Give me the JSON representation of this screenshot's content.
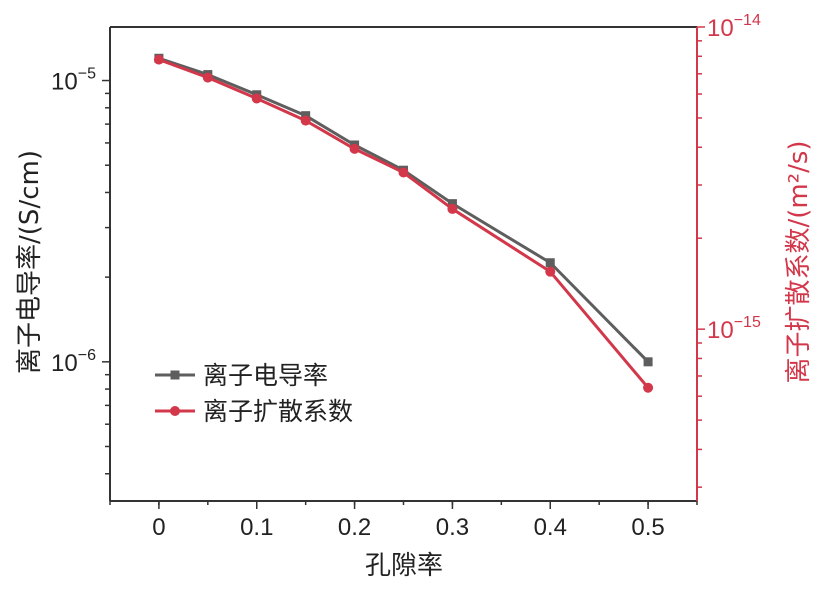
{
  "chart_data": {
    "type": "line",
    "xlabel": "孔隙率",
    "ylabel_left": "离子电导率/(S/cm)",
    "ylabel_right": "离子扩散系数/(m²/s)",
    "xlim": [
      -0.05,
      0.55
    ],
    "x_ticks": [
      0,
      0.1,
      0.2,
      0.3,
      0.4,
      0.5
    ],
    "x_tick_labels": [
      "0",
      "0.1",
      "0.2",
      "0.3",
      "0.4",
      "0.5"
    ],
    "y_left_scale": "log",
    "y_left_lim": [
      3.2e-07,
      1.55e-05
    ],
    "y_left_major_ticks": [
      1e-06,
      1e-05
    ],
    "y_left_tick_labels": [
      {
        "base": "10",
        "exp": "−6"
      },
      {
        "base": "10",
        "exp": "−5"
      }
    ],
    "y_right_scale": "log",
    "y_right_lim": [
      2.7e-16,
      1e-14
    ],
    "y_right_major_ticks": [
      1e-15,
      1e-14
    ],
    "y_right_tick_labels": [
      {
        "base": "10",
        "exp": "−15"
      },
      {
        "base": "10",
        "exp": "−14"
      }
    ],
    "x": [
      0,
      0.05,
      0.1,
      0.15,
      0.2,
      0.25,
      0.3,
      0.4,
      0.5
    ],
    "series": [
      {
        "name": "离子电导率",
        "axis": "left",
        "marker": "square",
        "color": "#5e5e5e",
        "values": [
          1.2e-05,
          1.05e-05,
          8.9e-06,
          7.5e-06,
          5.9e-06,
          4.8e-06,
          3.65e-06,
          2.25e-06,
          1e-06
        ]
      },
      {
        "name": "离子扩散系数",
        "axis": "right",
        "marker": "circle",
        "color": "#d2374a",
        "values": [
          7.8e-15,
          6.8e-15,
          5.8e-15,
          4.9e-15,
          3.95e-15,
          3.3e-15,
          2.5e-15,
          1.55e-15,
          6.4e-16
        ]
      }
    ],
    "legend_position": "lower-left",
    "grid": false
  }
}
